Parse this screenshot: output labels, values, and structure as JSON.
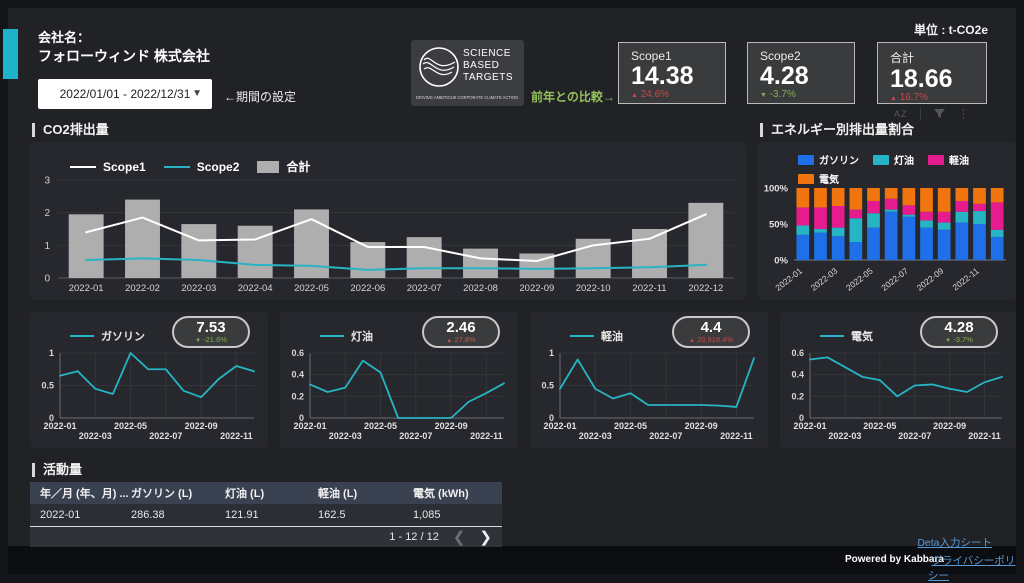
{
  "page": {
    "unit_label": "単位 : t-CO2e"
  },
  "header": {
    "company_label": "会社名：",
    "company_name": "フォローウィンド 株式会社",
    "date_range": "2022/01/01 - 2022/12/31",
    "period_hint": "←期間の設定",
    "comparison_label": "前年との比較→"
  },
  "sbt_logo": {
    "line1": "SCIENCE",
    "line2": "BASED",
    "line3": "TARGETS",
    "tagline": "DRIVING AMBITIOUS CORPORATE CLIMATE ACTION"
  },
  "toolbar": {
    "sort_label": "AZ"
  },
  "kpis": [
    {
      "label": "Scope1",
      "value": "14.38",
      "delta": {
        "arrow": "▲",
        "text": "24.6%",
        "color": "#c64848"
      }
    },
    {
      "label": "Scope2",
      "value": "4.28",
      "delta": {
        "arrow": "▼",
        "text": "-3.7%",
        "color": "#86b04e"
      }
    },
    {
      "label": "合計",
      "value": "18.66",
      "delta": {
        "arrow": "▲",
        "text": "16.7%",
        "color": "#c64848"
      }
    }
  ],
  "chart_data": [
    {
      "id": "co2",
      "type": "combo",
      "title": "CO2排出量",
      "categories": [
        "2022-01",
        "2022-02",
        "2022-03",
        "2022-04",
        "2022-05",
        "2022-06",
        "2022-07",
        "2022-08",
        "2022-09",
        "2022-10",
        "2022-11",
        "2022-12"
      ],
      "bar_series": {
        "name": "合計",
        "color": "#aeaeae",
        "values": [
          1.95,
          2.4,
          1.65,
          1.6,
          2.1,
          1.1,
          1.25,
          0.9,
          0.75,
          1.2,
          1.5,
          2.3
        ]
      },
      "line_series": [
        {
          "name": "Scope1",
          "color": "#ffffff",
          "values": [
            1.4,
            1.85,
            1.15,
            1.18,
            1.8,
            0.95,
            0.95,
            0.6,
            0.52,
            1.0,
            1.2,
            1.95
          ]
        },
        {
          "name": "Scope2",
          "color": "#27b4c4",
          "values": [
            0.55,
            0.6,
            0.55,
            0.4,
            0.37,
            0.25,
            0.3,
            0.3,
            0.28,
            0.3,
            0.33,
            0.4
          ]
        }
      ],
      "ylim": [
        0,
        3
      ],
      "yticks": [
        0,
        1,
        2,
        3
      ]
    },
    {
      "id": "energy",
      "type": "stacked100",
      "title": "エネルギー別排出量割合",
      "categories": [
        "2022-01",
        "2022-02",
        "2022-03",
        "2022-04",
        "2022-05",
        "2022-06",
        "2022-07",
        "2022-08",
        "2022-09",
        "2022-10",
        "2022-11",
        "2022-12"
      ],
      "series": [
        {
          "name": "ガソリン",
          "color": "#1e6fe8",
          "values": [
            35,
            38,
            33,
            25,
            45,
            67,
            60,
            45,
            42,
            52,
            50,
            32
          ]
        },
        {
          "name": "灯油",
          "color": "#27b4c4",
          "values": [
            13,
            5,
            12,
            33,
            20,
            3,
            3,
            10,
            10,
            15,
            18,
            10
          ]
        },
        {
          "name": "軽油",
          "color": "#e51b8e",
          "values": [
            25,
            30,
            30,
            12,
            17,
            15,
            13,
            12,
            15,
            15,
            10,
            38
          ]
        },
        {
          "name": "電気",
          "color": "#f0750f",
          "values": [
            27,
            27,
            25,
            30,
            18,
            15,
            24,
            33,
            33,
            18,
            22,
            20
          ]
        }
      ],
      "yticks_pct": [
        0,
        50,
        100
      ]
    },
    {
      "id": "gasoline",
      "type": "line",
      "name": "ガソリン",
      "color": "#27b4c4",
      "badge": {
        "value": "7.53",
        "arrow": "▼",
        "delta": "-21.6%",
        "color": "#86b04e"
      },
      "x": [
        "2022-01",
        "2022-02",
        "2022-03",
        "2022-04",
        "2022-05",
        "2022-06",
        "2022-07",
        "2022-08",
        "2022-09",
        "2022-10",
        "2022-11",
        "2022-12"
      ],
      "values": [
        0.65,
        0.72,
        0.45,
        0.37,
        1.0,
        0.75,
        0.75,
        0.42,
        0.32,
        0.6,
        0.8,
        0.72
      ],
      "ylim": [
        0,
        1
      ],
      "yticks": [
        0,
        0.5,
        1
      ]
    },
    {
      "id": "kerosene",
      "type": "line",
      "name": "灯油",
      "color": "#27b4c4",
      "badge": {
        "value": "2.46",
        "arrow": "▲",
        "delta": "27.8%",
        "color": "#c65a45"
      },
      "x": [
        "2022-01",
        "2022-02",
        "2022-03",
        "2022-04",
        "2022-05",
        "2022-06",
        "2022-07",
        "2022-08",
        "2022-09",
        "2022-10",
        "2022-11",
        "2022-12"
      ],
      "values": [
        0.31,
        0.24,
        0.28,
        0.53,
        0.42,
        0,
        0,
        0,
        0,
        0.15,
        0.23,
        0.32
      ],
      "ylim": [
        0,
        0.6
      ],
      "yticks": [
        0,
        0.2,
        0.4,
        0.6
      ]
    },
    {
      "id": "diesel",
      "type": "line",
      "name": "軽油",
      "color": "#27b4c4",
      "badge": {
        "value": "4.4",
        "arrow": "▲",
        "delta": "20,918.4%",
        "color": "#c64848"
      },
      "x": [
        "2022-01",
        "2022-02",
        "2022-03",
        "2022-04",
        "2022-05",
        "2022-06",
        "2022-07",
        "2022-08",
        "2022-09",
        "2022-10",
        "2022-11",
        "2022-12"
      ],
      "values": [
        0.45,
        0.9,
        0.45,
        0.3,
        0.38,
        0.2,
        0.2,
        0.2,
        0.2,
        0.19,
        0.17,
        0.92
      ],
      "ylim": [
        0,
        1
      ],
      "yticks": [
        0,
        0.5,
        1
      ]
    },
    {
      "id": "electricity",
      "type": "line",
      "name": "電気",
      "color": "#27b4c4",
      "badge": {
        "value": "4.28",
        "arrow": "▼",
        "delta": "-3.7%",
        "color": "#86b04e"
      },
      "x": [
        "2022-01",
        "2022-02",
        "2022-03",
        "2022-04",
        "2022-05",
        "2022-06",
        "2022-07",
        "2022-08",
        "2022-09",
        "2022-10",
        "2022-11",
        "2022-12"
      ],
      "values": [
        0.54,
        0.56,
        0.47,
        0.38,
        0.35,
        0.2,
        0.3,
        0.31,
        0.27,
        0.24,
        0.33,
        0.38
      ],
      "ylim": [
        0,
        0.6
      ],
      "yticks": [
        0,
        0.2,
        0.4,
        0.6
      ]
    }
  ],
  "activity": {
    "title": "活動量",
    "columns": [
      "年／月 (年、月) ...",
      "ガソリン (L)",
      "灯油 (L)",
      "軽油 (L)",
      "電気 (kWh)"
    ],
    "rows": [
      [
        "2022-01",
        "286.38",
        "121.91",
        "162.5",
        "1,085"
      ]
    ],
    "pagination": "1 - 12 / 12"
  },
  "footer": {
    "data_sheet_link": "Deta入力シート",
    "powered_by": "Powered by Kabbara",
    "privacy_prefix": "-",
    "privacy_link": "プライバシーポリシー"
  }
}
